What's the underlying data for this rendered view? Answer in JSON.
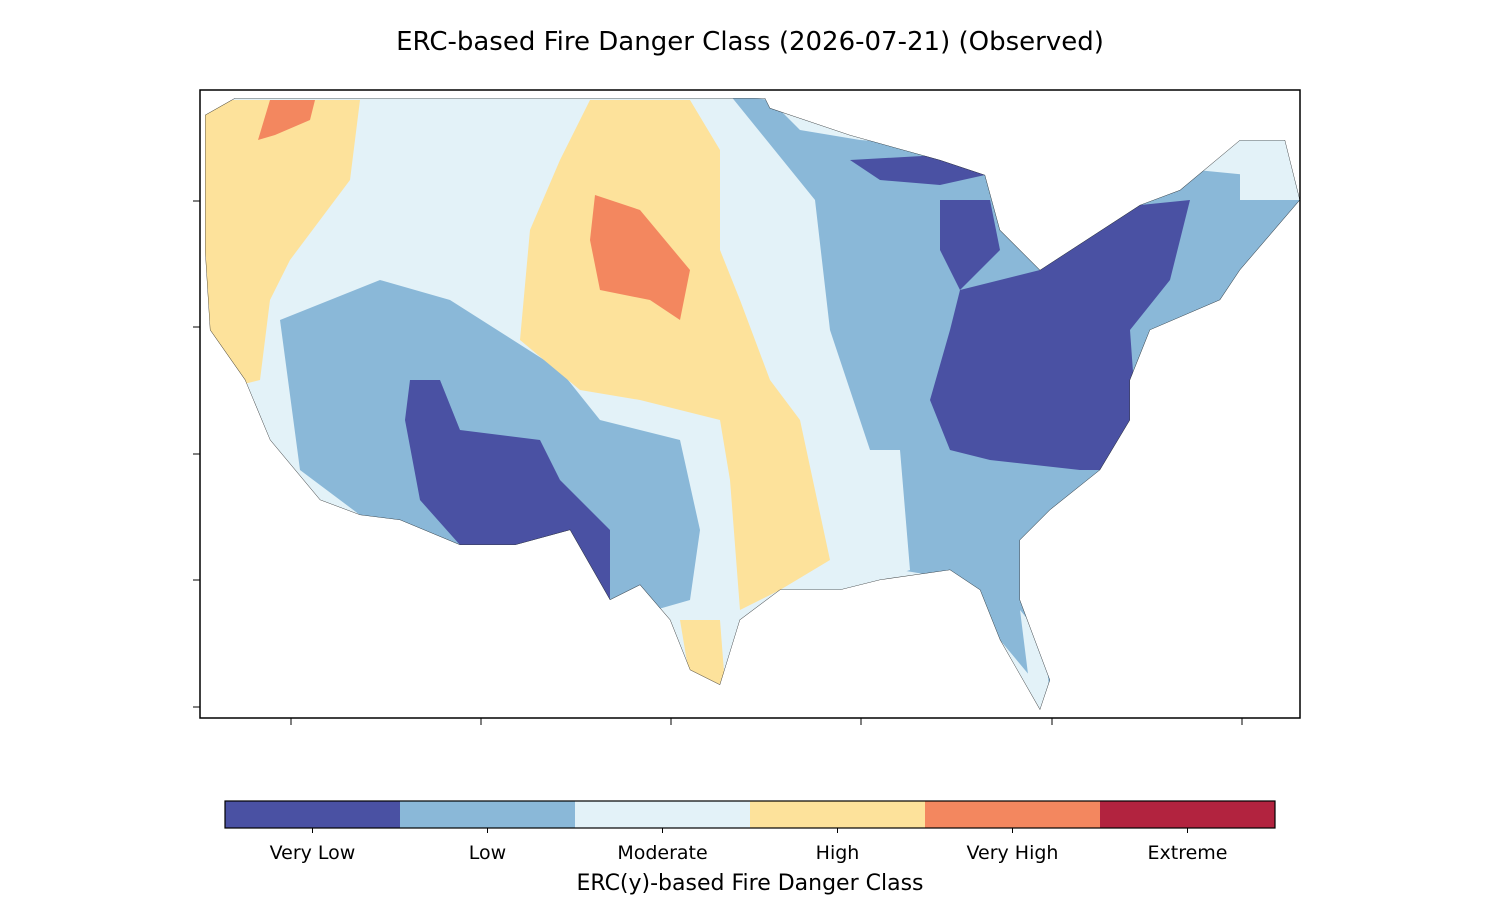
{
  "title": "ERC-based Fire Danger Class (2026-07-21) (Observed)",
  "colorbar": {
    "label": "ERC(y)-based Fire Danger Class",
    "classes": [
      {
        "name": "Very Low",
        "color": "#4a51a3"
      },
      {
        "name": "Low",
        "color": "#8ab8d8"
      },
      {
        "name": "Moderate",
        "color": "#e3f2f8"
      },
      {
        "name": "High",
        "color": "#fde29b"
      },
      {
        "name": "Very High",
        "color": "#f3875f"
      },
      {
        "name": "Extreme",
        "color": "#b2233f"
      }
    ]
  }
}
